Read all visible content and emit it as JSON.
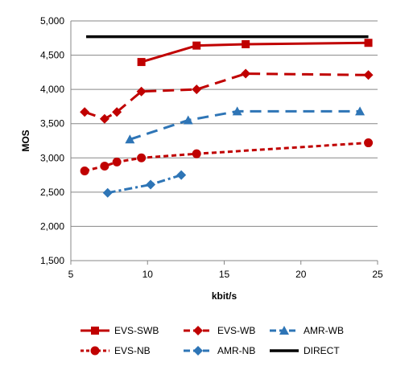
{
  "chart_data": {
    "type": "line",
    "xlabel": "kbit/s",
    "ylabel": "MOS",
    "xlim": [
      5,
      25
    ],
    "ylim": [
      1500,
      5000
    ],
    "x_ticks": [
      5,
      10,
      15,
      20,
      25
    ],
    "y_ticks": [
      1500,
      2000,
      2500,
      3000,
      3500,
      4000,
      4500,
      5000
    ],
    "x_tick_labels": [
      "5",
      "10",
      "15",
      "20",
      "25"
    ],
    "y_tick_labels": [
      "1,500",
      "2,000",
      "2,500",
      "3,000",
      "3,500",
      "4,000",
      "4,500",
      "5,000"
    ],
    "grid": "horizontal",
    "legend_position": "bottom",
    "series": [
      {
        "name": "EVS-SWB",
        "color": "#C00000",
        "dash": "solid",
        "marker": "square",
        "x": [
          9.6,
          13.2,
          16.4,
          24.4
        ],
        "y": [
          4400,
          4640,
          4660,
          4680
        ]
      },
      {
        "name": "EVS-WB",
        "color": "#C00000",
        "dash": "longdash",
        "marker": "diamond",
        "x": [
          5.9,
          7.2,
          8.0,
          9.6,
          13.2,
          16.4,
          24.4
        ],
        "y": [
          3670,
          3570,
          3670,
          3970,
          4000,
          4230,
          4210
        ]
      },
      {
        "name": "AMR-WB",
        "color": "#2E75B6",
        "dash": "longdash",
        "marker": "triangle",
        "x": [
          8.85,
          12.65,
          15.85,
          23.85
        ],
        "y": [
          3270,
          3550,
          3680,
          3680
        ]
      },
      {
        "name": "EVS-NB",
        "color": "#C00000",
        "dash": "shortdash",
        "marker": "circle",
        "x": [
          5.9,
          7.2,
          8.0,
          9.6,
          13.2,
          24.4
        ],
        "y": [
          2810,
          2880,
          2940,
          3000,
          3060,
          3220
        ]
      },
      {
        "name": "AMR-NB",
        "color": "#2E75B6",
        "dash": "dashdot",
        "marker": "diamond",
        "x": [
          7.4,
          10.2,
          12.2
        ],
        "y": [
          2490,
          2610,
          2750
        ]
      },
      {
        "name": "DIRECT",
        "color": "#000000",
        "dash": "solid",
        "marker": "none",
        "x": [
          6,
          24.4
        ],
        "y": [
          4770,
          4770
        ]
      }
    ]
  }
}
